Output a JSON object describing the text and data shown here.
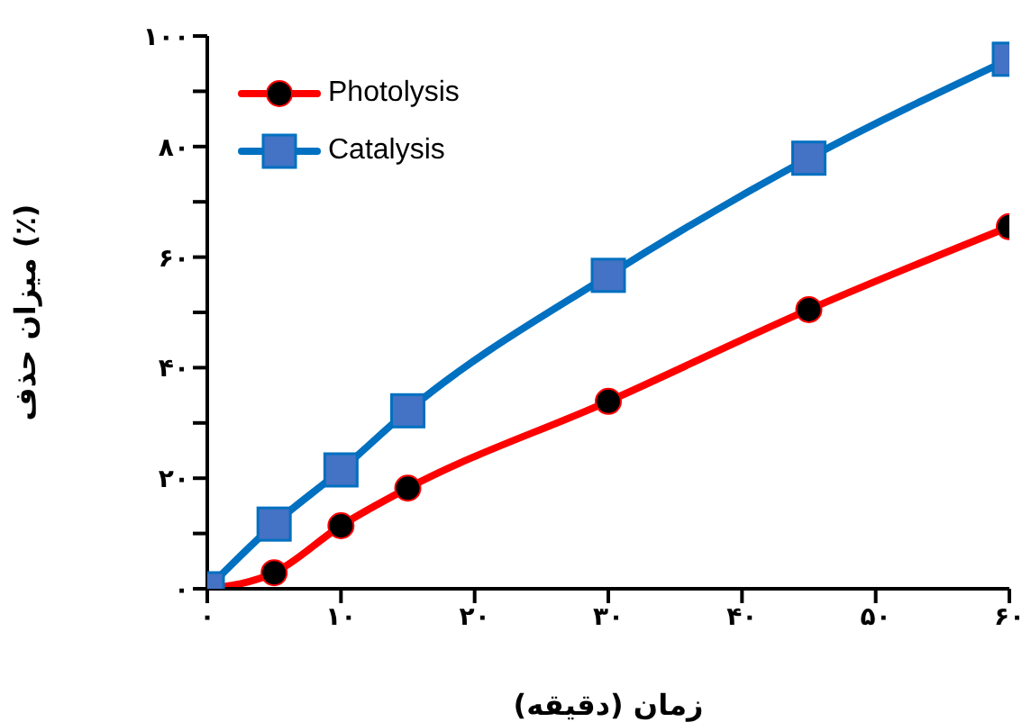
{
  "chart_data": {
    "type": "line",
    "xlabel": "زمان (دقیقه)",
    "ylabel": "میزان حذف (٪)",
    "x": [
      0,
      5,
      10,
      15,
      30,
      45,
      60
    ],
    "series": [
      {
        "name": "Photolysis",
        "color": "#ff0000",
        "marker": "circle",
        "values": [
          0,
          2.9,
          11.4,
          18.2,
          33.9,
          50.5,
          65.5
        ]
      },
      {
        "name": "Catalysis",
        "color": "#0070c0",
        "marker": "square",
        "values": [
          0,
          11.7,
          21.5,
          32.2,
          56.7,
          77.9,
          95.8
        ]
      }
    ],
    "xlim": [
      0,
      60
    ],
    "xticks": [
      {
        "value": 0,
        "label": "۰"
      },
      {
        "value": 10,
        "label": "۱۰"
      },
      {
        "value": 20,
        "label": "۲۰"
      },
      {
        "value": 30,
        "label": "۳۰"
      },
      {
        "value": 40,
        "label": "۴۰"
      },
      {
        "value": 50,
        "label": "۵۰"
      },
      {
        "value": 60,
        "label": "۶۰"
      }
    ],
    "ylim": [
      0,
      100
    ],
    "yticks": [
      {
        "value": 0,
        "label": "۰"
      },
      {
        "value": 10,
        "label": null
      },
      {
        "value": 20,
        "label": "۲۰"
      },
      {
        "value": 30,
        "label": null
      },
      {
        "value": 40,
        "label": "۴۰"
      },
      {
        "value": 50,
        "label": null
      },
      {
        "value": 60,
        "label": "۶۰"
      },
      {
        "value": 70,
        "label": null
      },
      {
        "value": 80,
        "label": "۸۰"
      },
      {
        "value": 90,
        "label": null
      },
      {
        "value": 100,
        "label": "۱۰۰"
      }
    ],
    "grid": false,
    "legend": "top left",
    "line_style": "solid"
  }
}
